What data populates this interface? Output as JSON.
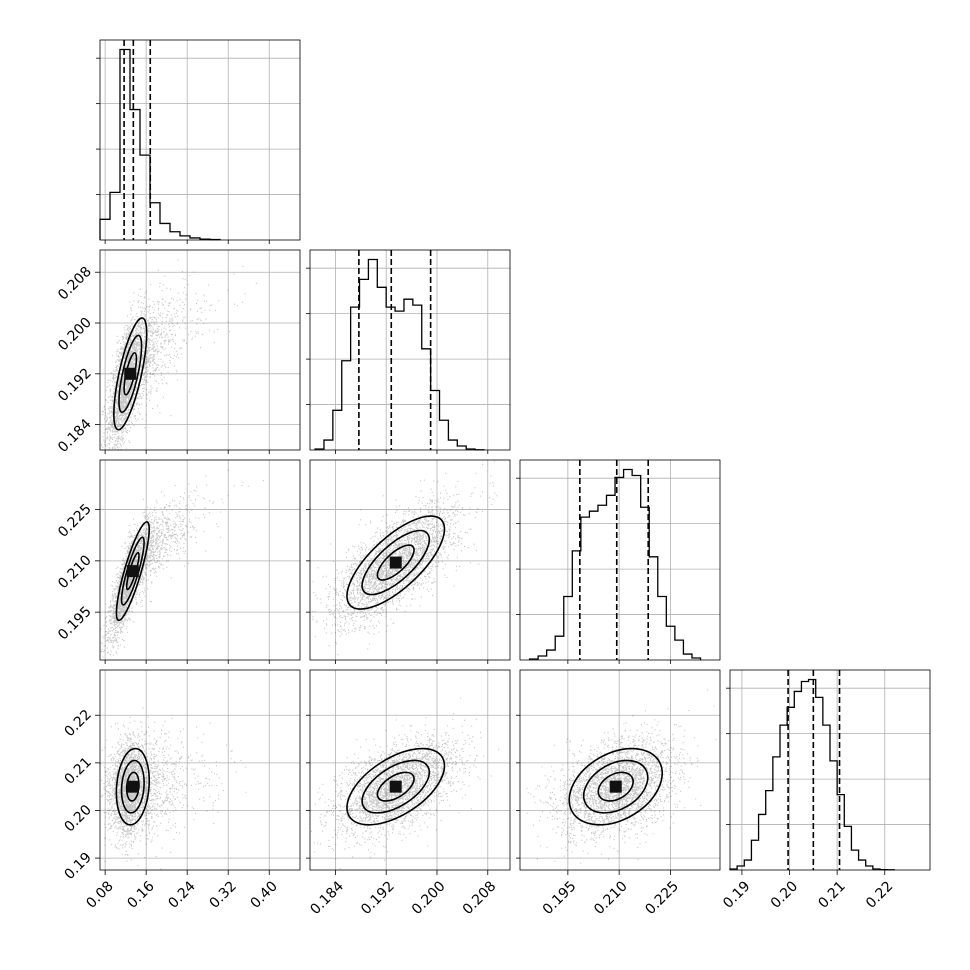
{
  "chart_data": {
    "type": "scatter",
    "title": "",
    "grid": true,
    "parameters": [
      {
        "range": [
          0.07,
          0.46
        ],
        "ticks": [
          0.08,
          0.16,
          0.24,
          0.32,
          0.4
        ],
        "tick_labels": [
          "0.08",
          "0.16",
          "0.24",
          "0.32",
          "0.40"
        ],
        "quantiles": [
          0.117,
          0.135,
          0.168
        ],
        "histogram": {
          "bin_edges": [
            0.07,
            0.0895,
            0.109,
            0.1285,
            0.148,
            0.1675,
            0.187,
            0.2065,
            0.226,
            0.2455,
            0.265,
            0.2845,
            0.304
          ],
          "counts": [
            0.1,
            0.23,
            0.92,
            0.63,
            0.41,
            0.18,
            0.08,
            0.04,
            0.02,
            0.01,
            0.004,
            0.002
          ]
        }
      },
      {
        "range": [
          0.18,
          0.2115
        ],
        "ticks": [
          0.184,
          0.192,
          0.2,
          0.208
        ],
        "tick_labels": [
          "0.184",
          "0.192",
          "0.200",
          "0.208"
        ],
        "quantiles": [
          0.1877,
          0.1928,
          0.199
        ],
        "histogram": {
          "bin_edges": [
            0.1808,
            0.1822,
            0.1836,
            0.185,
            0.1864,
            0.1878,
            0.1892,
            0.1906,
            0.192,
            0.1934,
            0.1948,
            0.1962,
            0.1976,
            0.199,
            0.2004,
            0.2018,
            0.2032,
            0.2046,
            0.206,
            0.2074
          ],
          "counts": [
            0.005,
            0.05,
            0.2,
            0.45,
            0.72,
            0.86,
            0.96,
            0.82,
            0.72,
            0.7,
            0.76,
            0.73,
            0.51,
            0.3,
            0.15,
            0.05,
            0.02,
            0.005,
            0.001
          ]
        }
      },
      {
        "range": [
          0.181,
          0.2395
        ],
        "ticks": [
          0.195,
          0.21,
          0.225
        ],
        "tick_labels": [
          "0.195",
          "0.210",
          "0.225"
        ],
        "quantiles": [
          0.1985,
          0.2093,
          0.2185
        ],
        "histogram": {
          "bin_edges": [
            0.1838,
            0.1863,
            0.1888,
            0.1913,
            0.1938,
            0.1963,
            0.1988,
            0.2013,
            0.2038,
            0.2063,
            0.2088,
            0.2113,
            0.2138,
            0.2163,
            0.2188,
            0.2213,
            0.2238,
            0.2263,
            0.2288,
            0.2313,
            0.2338
          ],
          "counts": [
            0.005,
            0.02,
            0.05,
            0.12,
            0.32,
            0.55,
            0.72,
            0.75,
            0.78,
            0.83,
            0.92,
            0.96,
            0.93,
            0.77,
            0.52,
            0.32,
            0.17,
            0.1,
            0.03,
            0.01
          ]
        }
      },
      {
        "range": [
          0.1875,
          0.2295
        ],
        "ticks": [
          0.19,
          0.2,
          0.21,
          0.22
        ],
        "tick_labels": [
          "0.19",
          "0.20",
          "0.21",
          "0.22"
        ],
        "quantiles": [
          0.1997,
          0.205,
          0.2105
        ],
        "histogram": {
          "bin_edges": [
            0.1875,
            0.189,
            0.1905,
            0.192,
            0.1935,
            0.195,
            0.1965,
            0.198,
            0.1995,
            0.201,
            0.2025,
            0.204,
            0.2055,
            0.207,
            0.2085,
            0.21,
            0.2115,
            0.213,
            0.2145,
            0.216,
            0.2175,
            0.219,
            0.2205,
            0.222
          ],
          "counts": [
            0.005,
            0.02,
            0.05,
            0.15,
            0.28,
            0.4,
            0.57,
            0.73,
            0.82,
            0.9,
            0.95,
            0.96,
            0.87,
            0.73,
            0.55,
            0.38,
            0.22,
            0.1,
            0.05,
            0.02,
            0.005,
            0.002,
            0.001
          ]
        }
      }
    ],
    "panels_2d": [
      {
        "x": 0,
        "y": 1,
        "mean": [
          0.125,
          0.192
        ],
        "sd": [
          0.02,
          0.0055
        ],
        "corr": 0.72,
        "skew_x": 0.03
      },
      {
        "x": 0,
        "y": 2,
        "mean": [
          0.13,
          0.207
        ],
        "sd": [
          0.02,
          0.009
        ],
        "corr": 0.85,
        "skew_x": 0.03
      },
      {
        "x": 1,
        "y": 2,
        "mean": [
          0.1935,
          0.2095
        ],
        "sd": [
          0.0048,
          0.0085
        ],
        "corr": 0.72,
        "skew_x": 0.0
      },
      {
        "x": 0,
        "y": 3,
        "mean": [
          0.13,
          0.205
        ],
        "sd": [
          0.02,
          0.005
        ],
        "corr": 0.15,
        "skew_x": 0.03
      },
      {
        "x": 1,
        "y": 3,
        "mean": [
          0.1935,
          0.205
        ],
        "sd": [
          0.0048,
          0.005
        ],
        "corr": 0.55,
        "skew_x": 0.0
      },
      {
        "x": 2,
        "y": 3,
        "mean": [
          0.209,
          0.205
        ],
        "sd": [
          0.0085,
          0.005
        ],
        "corr": 0.35,
        "skew_x": 0.0
      }
    ],
    "contour_levels": [
      0.5,
      1.0,
      1.5,
      2.0
    ]
  }
}
